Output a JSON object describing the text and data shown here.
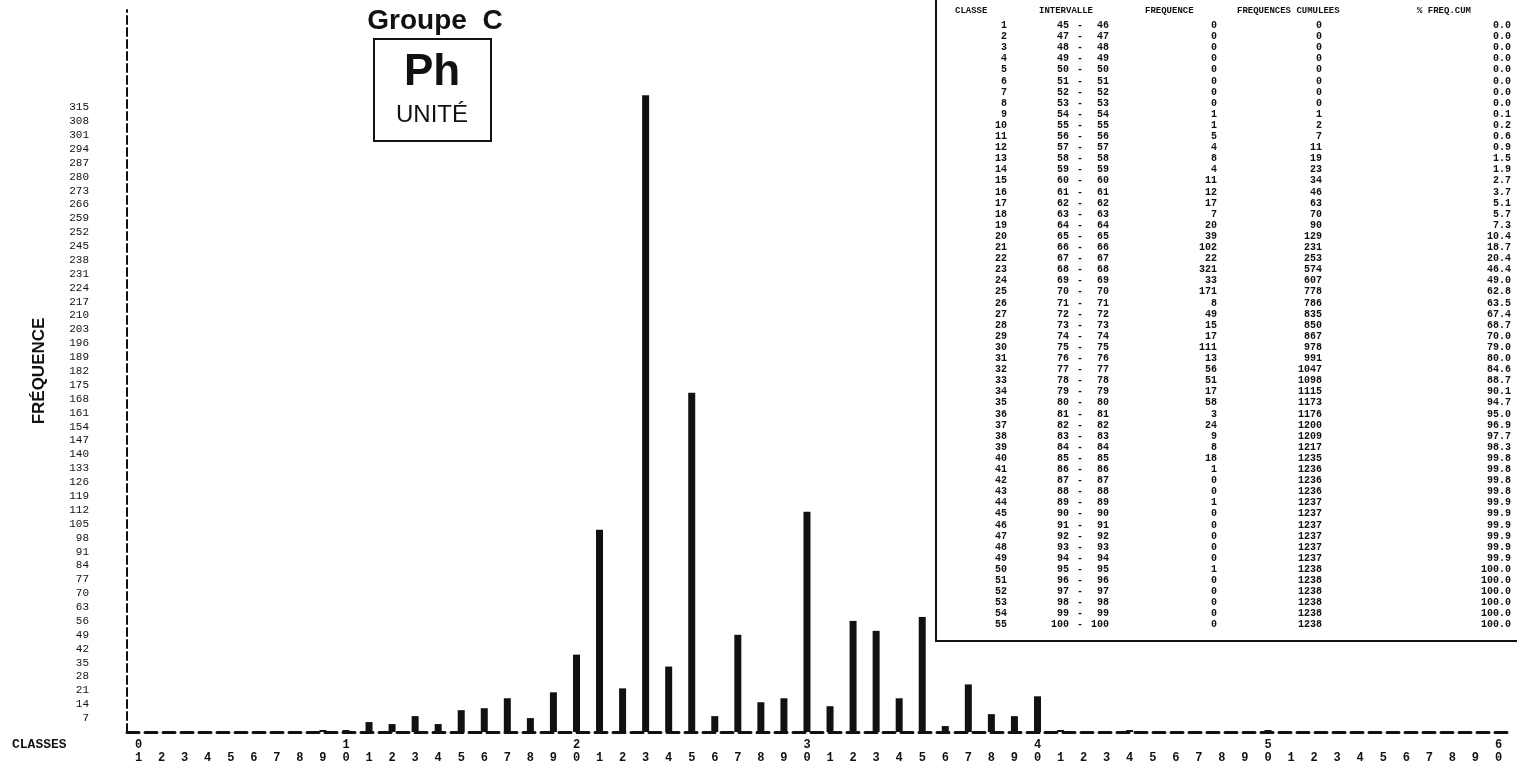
{
  "chart_data": [
    {
      "type": "bar",
      "title": "Groupe  C",
      "annotations": [
        "Ph",
        "UNITÉ"
      ],
      "xlabel": "CLASSES",
      "ylabel": "FRÉQUENCE",
      "color": "#111111",
      "categories": [
        "01",
        "2",
        "3",
        "4",
        "5",
        "6",
        "7",
        "8",
        "9",
        "10",
        "1",
        "2",
        "3",
        "4",
        "5",
        "6",
        "7",
        "8",
        "9",
        "20",
        "1",
        "2",
        "3",
        "4",
        "5",
        "6",
        "7",
        "8",
        "9",
        "30",
        "1",
        "2",
        "3",
        "4",
        "5",
        "6",
        "7",
        "8",
        "9",
        "40",
        "1",
        "2",
        "3",
        "4",
        "5",
        "6",
        "7",
        "8",
        "9",
        "50",
        "1",
        "2",
        "3",
        "4",
        "5",
        "6",
        "7",
        "8",
        "9",
        "60"
      ],
      "values": [
        0,
        0,
        0,
        0,
        0,
        0,
        0,
        0,
        1,
        1,
        5,
        4,
        8,
        4,
        11,
        12,
        17,
        7,
        20,
        39,
        102,
        22,
        321,
        33,
        171,
        8,
        49,
        15,
        17,
        111,
        13,
        56,
        51,
        17,
        58,
        3,
        24,
        9,
        8,
        18,
        1,
        0,
        0,
        1,
        0,
        0,
        0,
        0,
        0,
        1,
        0,
        0,
        0,
        0,
        0,
        null,
        null,
        null,
        null,
        null
      ],
      "ylim": [
        0,
        364
      ],
      "yticks": [
        7,
        14,
        21,
        28,
        35,
        42,
        49,
        56,
        63,
        70,
        77,
        84,
        91,
        98,
        105,
        112,
        119,
        126,
        133,
        140,
        147,
        154,
        161,
        168,
        175,
        182,
        189,
        196,
        203,
        210,
        217,
        224,
        231,
        238,
        245,
        252,
        259,
        266,
        273,
        280,
        287,
        294,
        301,
        308,
        315
      ],
      "grid": false
    },
    {
      "type": "other",
      "categories": [
        "CLASSE",
        "INTERVALLE",
        "FREQUENCE",
        "FREQUENCES CUMULEES",
        "% FREQ.CUM"
      ],
      "annotations": [
        "1 45 - 46 0 0 0.0",
        "2 47 - 47 0 0 0.0",
        "3 48 - 48 0 0 0.0",
        "4 49 - 49 0 0 0.0",
        "5 50 - 50 0 0 0.0",
        "6 51 - 51 0 0 0.0",
        "7 52 - 52 0 0 0.0",
        "8 53 - 53 0 0 0.0",
        "9 54 - 54 1 1 0.1",
        "10 55 - 55 1 2 0.2",
        "11 56 - 56 5 7 0.6",
        "12 57 - 57 4 11 0.9",
        "13 58 - 58 8 19 1.5",
        "14 59 - 59 4 23 1.9",
        "15 60 - 60 11 34 2.7",
        "16 61 - 61 12 46 3.7",
        "17 62 - 62 17 63 5.1",
        "18 63 - 63 7 70 5.7",
        "19 64 - 64 20 90 7.3",
        "20 65 - 65 39 129 10.4",
        "21 66 - 66 102 231 18.7",
        "22 67 - 67 22 253 20.4",
        "23 68 - 68 321 574 46.4",
        "24 69 - 69 33 607 49.0",
        "25 70 - 70 171 778 62.8",
        "26 71 - 71 8 786 63.5",
        "27 72 - 72 49 835 67.4",
        "28 73 - 73 15 850 68.7",
        "29 74 - 74 17 867 70.0",
        "30 75 - 75 111 978 79.0",
        "31 76 - 76 13 991 80.0",
        "32 77 - 77 56 1047 84.6",
        "33 78 - 78 51 1098 88.7",
        "34 79 - 79 17 1115 90.1",
        "35 80 - 80 58 1173 94.7",
        "36 81 - 81 3 1176 95.0",
        "37 82 - 82 24 1200 96.9",
        "38 83 - 83 9 1209 97.7",
        "39 84 - 84 8 1217 98.3",
        "40 85 - 85 18 1235 99.8",
        "41 86 - 86 1 1236 99.8",
        "42 87 - 87 0 1236 99.8",
        "43 88 - 88 0 1236 99.8",
        "44 89 - 89 1 1237 99.9",
        "45 90 - 90 0 1237 99.9",
        "46 91 - 91 0 1237 99.9",
        "47 92 - 92 0 1237 99.9",
        "48 93 - 93 0 1237 99.9",
        "49 94 - 94 0 1237 99.9",
        "50 95 - 95 1 1238 100.0",
        "51 96 - 96 0 1238 100.0",
        "52 97 - 97 0 1238 100.0",
        "53 98 - 98 0 1238 100.0",
        "54 99 - 99 0 1238 100.0",
        "55 100 - 100 0 1238 100.0"
      ]
    }
  ]
}
